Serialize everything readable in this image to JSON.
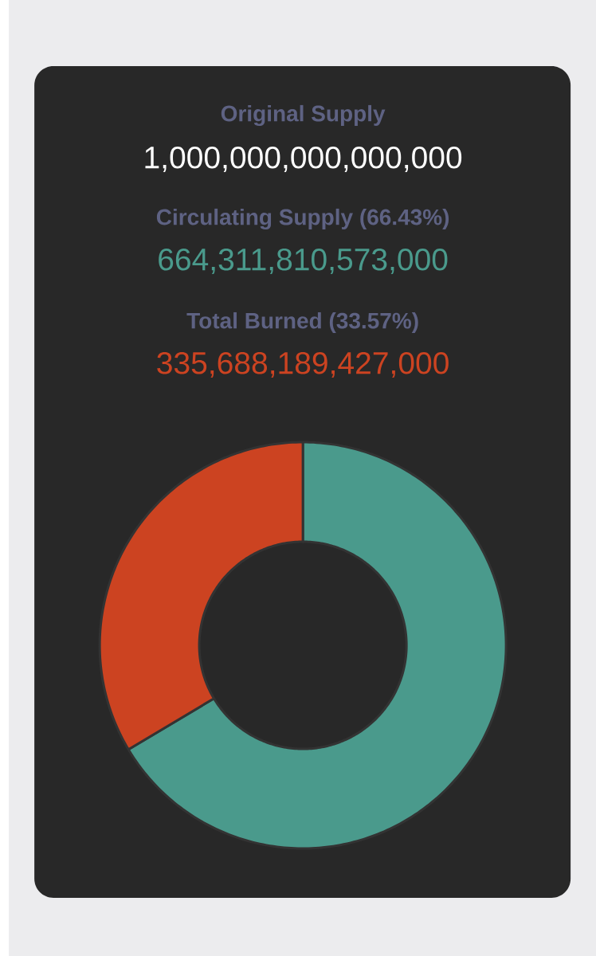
{
  "chart_data": {
    "type": "donut",
    "title": "Original Supply",
    "subtitle": "1,000,000,000,000,000",
    "annotations": [
      "Circulating Supply (66.43%)",
      "664,311,810,573,000",
      "Total Burned (33.57%)",
      "335,688,189,427,000"
    ],
    "categories": [
      null,
      null
    ],
    "values": [
      66.43,
      33.57
    ],
    "colors": [
      "#4a9a8c",
      "#cc4321"
    ]
  }
}
